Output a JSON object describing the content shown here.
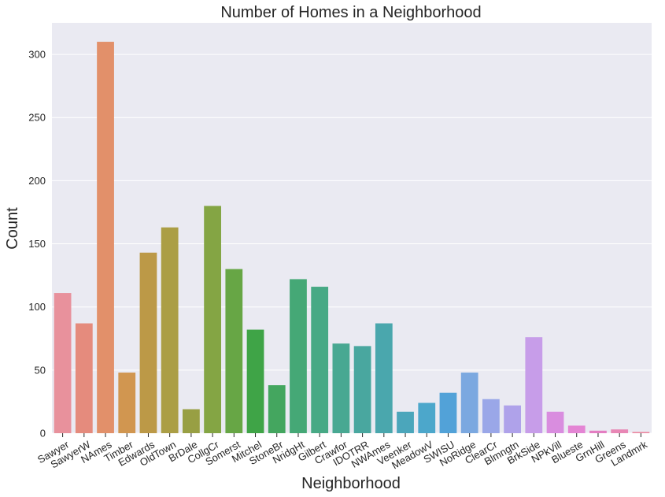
{
  "chart_data": {
    "type": "bar",
    "title": "Number of Homes in a Neighborhood",
    "xlabel": "Neighborhood",
    "ylabel": "Count",
    "ylim": [
      0,
      325
    ],
    "yticks": [
      0,
      50,
      100,
      150,
      200,
      250,
      300
    ],
    "grid": true,
    "legend": "none",
    "categories": [
      "Sawyer",
      "SawyerW",
      "NAmes",
      "Timber",
      "Edwards",
      "OldTown",
      "BrDale",
      "CollgCr",
      "Somerst",
      "Mitchel",
      "StoneBr",
      "NridgHt",
      "Gilbert",
      "Crawfor",
      "IDOTRR",
      "NWAmes",
      "Veenker",
      "MeadowV",
      "SWISU",
      "NoRidge",
      "ClearCr",
      "Blmngtn",
      "BrkSide",
      "NPkVill",
      "Blueste",
      "GrnHill",
      "Greens",
      "Landmrk"
    ],
    "values": [
      111,
      87,
      310,
      48,
      143,
      163,
      19,
      180,
      130,
      82,
      38,
      122,
      116,
      71,
      69,
      87,
      17,
      24,
      32,
      48,
      27,
      22,
      76,
      17,
      6,
      2,
      3,
      1
    ],
    "colors": [
      "#e8919c",
      "#e58b7d",
      "#e2906a",
      "#d19650",
      "#bc9947",
      "#ab9e45",
      "#989f43",
      "#84a544",
      "#67a645",
      "#3fa447",
      "#44a65f",
      "#45a876",
      "#47a985",
      "#48a892",
      "#49a79f",
      "#4aa7ad",
      "#4ba6bb",
      "#4ca7cb",
      "#52a2d8",
      "#7ba8e0",
      "#9aa7e8",
      "#afa2ea",
      "#c79de9",
      "#d98ddf",
      "#e485d4",
      "#e47ec2",
      "#e887b5",
      "#eb86a0"
    ]
  }
}
